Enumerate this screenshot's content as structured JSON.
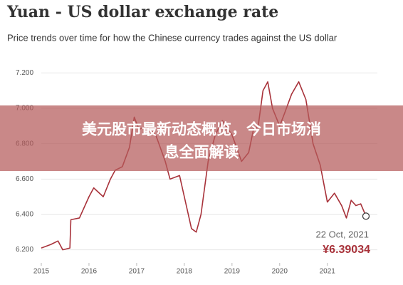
{
  "chart_data": {
    "type": "line",
    "title": "Yuan - US dollar exchange rate",
    "subtitle": "Price trends over time for how the Chinese currency trades against the US dollar",
    "x": [
      2015.0,
      2015.2,
      2015.35,
      2015.45,
      2015.6,
      2015.62,
      2015.8,
      2016.0,
      2016.1,
      2016.3,
      2016.45,
      2016.55,
      2016.7,
      2016.85,
      2016.95,
      2017.05,
      2017.2,
      2017.4,
      2017.6,
      2017.7,
      2017.9,
      2018.0,
      2018.15,
      2018.25,
      2018.35,
      2018.5,
      2018.65,
      2018.8,
      2019.0,
      2019.2,
      2019.35,
      2019.45,
      2019.55,
      2019.65,
      2019.75,
      2019.85,
      2020.0,
      2020.1,
      2020.25,
      2020.4,
      2020.55,
      2020.7,
      2020.85,
      2021.0,
      2021.15,
      2021.3,
      2021.4,
      2021.5,
      2021.6,
      2021.7,
      2021.81
    ],
    "values": [
      6.21,
      6.23,
      6.25,
      6.2,
      6.21,
      6.37,
      6.38,
      6.5,
      6.55,
      6.5,
      6.6,
      6.65,
      6.67,
      6.78,
      6.95,
      6.88,
      6.9,
      6.85,
      6.7,
      6.6,
      6.62,
      6.5,
      6.32,
      6.3,
      6.4,
      6.7,
      6.85,
      6.93,
      6.85,
      6.7,
      6.75,
      6.88,
      6.9,
      7.1,
      7.15,
      7.0,
      6.9,
      6.97,
      7.08,
      7.15,
      7.05,
      6.8,
      6.68,
      6.47,
      6.52,
      6.45,
      6.38,
      6.48,
      6.45,
      6.46,
      6.39034
    ],
    "color": "#a8323a",
    "xlim": [
      2015,
      2021.9
    ],
    "xticks": [
      2015,
      2016,
      2017,
      2018,
      2019,
      2020,
      2021
    ],
    "ylim": [
      6.15,
      7.25
    ],
    "yticks": [
      {
        "value": 6.2,
        "label": "6.200"
      },
      {
        "value": 6.4,
        "label": "6.400"
      },
      {
        "value": 6.6,
        "label": "6.600"
      },
      {
        "value": 6.8,
        "label": "6.800"
      },
      {
        "value": 7.0,
        "label": "7.000"
      },
      {
        "value": 7.2,
        "label": "7.200"
      }
    ],
    "grid": true,
    "annotation": {
      "date": "22 Oct, 2021",
      "value_label": "¥6.39034"
    }
  },
  "banner": {
    "line1": "美元股市最新动态概览，今日市场消",
    "line2": "息全面解读"
  }
}
